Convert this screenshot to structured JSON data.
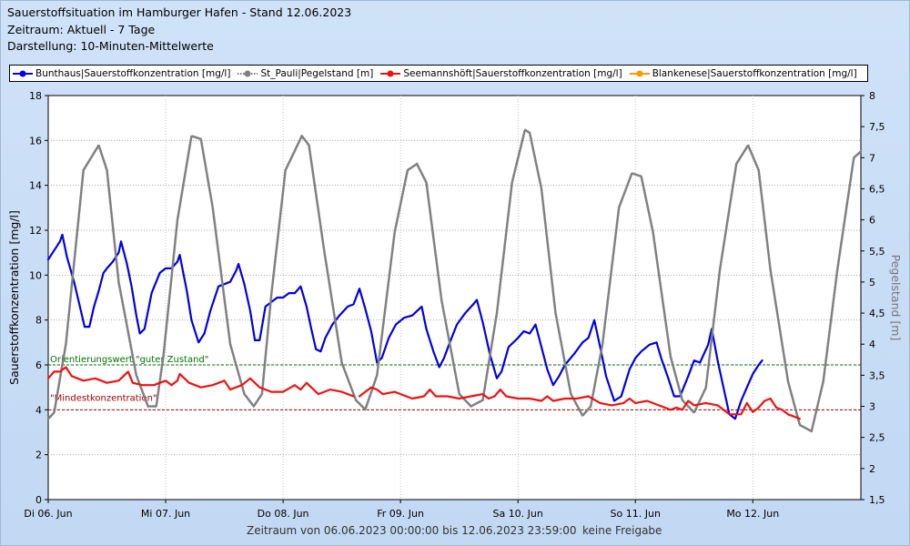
{
  "header": {
    "title": "Sauerstoffsituation im Hamburger Hafen - Stand 12.06.2023",
    "timespan": "Zeitraum: Aktuell - 7 Tage",
    "display": "Darstellung: 10-Minuten-Mittelwerte"
  },
  "footer": {
    "range": "Zeitraum von 06.06.2023 00:00:00 bis 12.06.2023 23:59:00",
    "status": "keine Freigabe"
  },
  "colors": {
    "bunthaus": "#0000e6",
    "stpauli": "#808080",
    "seemann": "#ee1111",
    "blankenese": "#ff9900",
    "ref_good": "#007000",
    "ref_min": "#a00000"
  },
  "chart_data": {
    "type": "line",
    "xlabel": "",
    "ylabel_left": "Sauerstoffkonzentration [mg/l]",
    "ylabel_right": "Pegelstand [m]",
    "ylim_left": [
      0,
      18
    ],
    "ylim_right": [
      1.5,
      8
    ],
    "yticks_left": [
      "0",
      "2",
      "4",
      "6",
      "8",
      "10",
      "12",
      "14",
      "16",
      "18"
    ],
    "yticks_right": [
      "1,5",
      "2",
      "2,5",
      "3",
      "3,5",
      "4",
      "4,5",
      "5",
      "5,5",
      "6",
      "6,5",
      "7",
      "7,5",
      "8"
    ],
    "x_range_days": [
      0,
      6.92
    ],
    "xticks": [
      {
        "day": 0,
        "label": "Di 06. Jun"
      },
      {
        "day": 1,
        "label": "Mi 07. Jun"
      },
      {
        "day": 2,
        "label": "Do 08. Jun"
      },
      {
        "day": 3,
        "label": "Fr 09. Jun"
      },
      {
        "day": 4,
        "label": "Sa 10. Jun"
      },
      {
        "day": 5,
        "label": "So 11. Jun"
      },
      {
        "day": 6,
        "label": "Mo 12. Jun"
      }
    ],
    "grid": true,
    "legend_position": "top",
    "reference_lines": [
      {
        "value": 6,
        "label": "Orientierungswert \"guter Zustand\"",
        "color": "#007000"
      },
      {
        "value": 4,
        "label": "\"Mindestkonzentration\"",
        "color": "#a00000"
      }
    ],
    "series": [
      {
        "name": "Bunthaus|Sauerstoffkonzentration [mg/l]",
        "axis": "left",
        "style": "solid",
        "color": "#0000e6",
        "points": [
          [
            0,
            10.7
          ],
          [
            0.05,
            11.1
          ],
          [
            0.1,
            11.5
          ],
          [
            0.12,
            11.8
          ],
          [
            0.16,
            10.8
          ],
          [
            0.22,
            9.7
          ],
          [
            0.27,
            8.6
          ],
          [
            0.31,
            7.7
          ],
          [
            0.35,
            7.7
          ],
          [
            0.39,
            8.6
          ],
          [
            0.43,
            9.3
          ],
          [
            0.47,
            10.1
          ],
          [
            0.5,
            10.3
          ],
          [
            0.55,
            10.6
          ],
          [
            0.6,
            11.0
          ],
          [
            0.62,
            11.5
          ],
          [
            0.67,
            10.5
          ],
          [
            0.71,
            9.5
          ],
          [
            0.75,
            8.2
          ],
          [
            0.78,
            7.4
          ],
          [
            0.82,
            7.6
          ],
          [
            0.88,
            9.2
          ],
          [
            0.95,
            10.1
          ],
          [
            1.0,
            10.3
          ],
          [
            1.05,
            10.3
          ],
          [
            1.1,
            10.6
          ],
          [
            1.12,
            10.9
          ],
          [
            1.18,
            9.3
          ],
          [
            1.22,
            8.0
          ],
          [
            1.28,
            7.0
          ],
          [
            1.33,
            7.4
          ],
          [
            1.38,
            8.4
          ],
          [
            1.45,
            9.5
          ],
          [
            1.5,
            9.6
          ],
          [
            1.55,
            9.7
          ],
          [
            1.6,
            10.2
          ],
          [
            1.62,
            10.5
          ],
          [
            1.67,
            9.6
          ],
          [
            1.72,
            8.4
          ],
          [
            1.76,
            7.1
          ],
          [
            1.8,
            7.1
          ],
          [
            1.85,
            8.6
          ],
          [
            1.95,
            9.0
          ],
          [
            2.0,
            9.0
          ],
          [
            2.05,
            9.2
          ],
          [
            2.1,
            9.2
          ],
          [
            2.15,
            9.5
          ],
          [
            2.2,
            8.6
          ],
          [
            2.24,
            7.6
          ],
          [
            2.28,
            6.7
          ],
          [
            2.32,
            6.6
          ],
          [
            2.36,
            7.2
          ],
          [
            2.42,
            7.8
          ],
          [
            2.48,
            8.2
          ],
          [
            2.55,
            8.6
          ],
          [
            2.6,
            8.7
          ],
          [
            2.65,
            9.4
          ],
          [
            2.7,
            8.5
          ],
          [
            2.75,
            7.5
          ],
          [
            2.8,
            6.1
          ],
          [
            2.84,
            6.3
          ],
          [
            2.9,
            7.2
          ],
          [
            2.96,
            7.8
          ],
          [
            3.03,
            8.1
          ],
          [
            3.1,
            8.2
          ],
          [
            3.18,
            8.6
          ],
          [
            3.22,
            7.6
          ],
          [
            3.28,
            6.6
          ],
          [
            3.33,
            5.9
          ],
          [
            3.37,
            6.3
          ],
          [
            3.42,
            7.0
          ],
          [
            3.48,
            7.8
          ],
          [
            3.55,
            8.3
          ],
          [
            3.62,
            8.7
          ],
          [
            3.65,
            8.9
          ],
          [
            3.7,
            7.9
          ],
          [
            3.76,
            6.5
          ],
          [
            3.82,
            5.4
          ],
          [
            3.86,
            5.7
          ],
          [
            3.92,
            6.8
          ],
          [
            4.0,
            7.2
          ],
          [
            4.05,
            7.5
          ],
          [
            4.1,
            7.4
          ],
          [
            4.15,
            7.8
          ],
          [
            4.2,
            6.8
          ],
          [
            4.25,
            5.8
          ],
          [
            4.3,
            5.1
          ],
          [
            4.35,
            5.5
          ],
          [
            4.4,
            6.0
          ],
          [
            4.48,
            6.5
          ],
          [
            4.55,
            7.0
          ],
          [
            4.6,
            7.2
          ],
          [
            4.65,
            8.0
          ],
          [
            4.7,
            6.8
          ],
          [
            4.75,
            5.5
          ],
          [
            4.82,
            4.4
          ],
          [
            4.88,
            4.6
          ],
          [
            4.95,
            5.8
          ],
          [
            5.0,
            6.3
          ],
          [
            5.05,
            6.6
          ],
          [
            5.12,
            6.9
          ],
          [
            5.18,
            7.0
          ],
          [
            5.22,
            6.3
          ],
          [
            5.28,
            5.4
          ],
          [
            5.33,
            4.6
          ],
          [
            5.38,
            4.6
          ],
          [
            5.45,
            5.5
          ],
          [
            5.5,
            6.2
          ],
          [
            5.55,
            6.1
          ],
          [
            5.62,
            6.9
          ],
          [
            5.65,
            7.6
          ],
          [
            5.7,
            6.2
          ],
          [
            5.75,
            5.0
          ],
          [
            5.8,
            3.8
          ],
          [
            5.85,
            3.6
          ],
          [
            5.9,
            4.4
          ],
          [
            5.95,
            5.0
          ],
          [
            6.0,
            5.6
          ],
          [
            6.05,
            6.0
          ],
          [
            6.08,
            6.2
          ]
        ]
      },
      {
        "name": "St_Pauli|Pegelstand [m]",
        "axis": "right",
        "style": "dotted",
        "color": "#808080",
        "points": [
          [
            0,
            2.8
          ],
          [
            0.05,
            2.9
          ],
          [
            0.15,
            4.0
          ],
          [
            0.3,
            6.8
          ],
          [
            0.43,
            7.2
          ],
          [
            0.5,
            6.8
          ],
          [
            0.6,
            5.0
          ],
          [
            0.75,
            3.5
          ],
          [
            0.85,
            3.0
          ],
          [
            0.92,
            3.0
          ],
          [
            0.98,
            3.8
          ],
          [
            1.1,
            6.0
          ],
          [
            1.22,
            7.35
          ],
          [
            1.3,
            7.3
          ],
          [
            1.4,
            6.2
          ],
          [
            1.55,
            4.0
          ],
          [
            1.67,
            3.2
          ],
          [
            1.75,
            3.0
          ],
          [
            1.82,
            3.2
          ],
          [
            1.9,
            4.8
          ],
          [
            2.02,
            6.8
          ],
          [
            2.16,
            7.35
          ],
          [
            2.22,
            7.2
          ],
          [
            2.35,
            5.5
          ],
          [
            2.5,
            3.7
          ],
          [
            2.62,
            3.1
          ],
          [
            2.7,
            2.95
          ],
          [
            2.8,
            3.5
          ],
          [
            2.95,
            5.8
          ],
          [
            3.06,
            6.8
          ],
          [
            3.14,
            6.9
          ],
          [
            3.22,
            6.6
          ],
          [
            3.35,
            4.7
          ],
          [
            3.5,
            3.2
          ],
          [
            3.6,
            3.0
          ],
          [
            3.7,
            3.1
          ],
          [
            3.82,
            4.5
          ],
          [
            3.95,
            6.6
          ],
          [
            4.06,
            7.45
          ],
          [
            4.1,
            7.4
          ],
          [
            4.2,
            6.5
          ],
          [
            4.32,
            4.5
          ],
          [
            4.45,
            3.2
          ],
          [
            4.55,
            2.85
          ],
          [
            4.62,
            3.0
          ],
          [
            4.72,
            4.0
          ],
          [
            4.86,
            6.2
          ],
          [
            4.97,
            6.75
          ],
          [
            5.05,
            6.7
          ],
          [
            5.15,
            5.8
          ],
          [
            5.3,
            3.8
          ],
          [
            5.4,
            3.1
          ],
          [
            5.5,
            2.9
          ],
          [
            5.6,
            3.3
          ],
          [
            5.72,
            5.2
          ],
          [
            5.86,
            6.9
          ],
          [
            5.96,
            7.2
          ],
          [
            6.05,
            6.8
          ],
          [
            6.15,
            5.2
          ],
          [
            6.3,
            3.4
          ],
          [
            6.4,
            2.7
          ],
          [
            6.5,
            2.6
          ],
          [
            6.6,
            3.4
          ],
          [
            6.72,
            5.2
          ],
          [
            6.86,
            7.0
          ],
          [
            6.92,
            7.1
          ]
        ]
      },
      {
        "name": "Seemannshöft|Sauerstoffkonzentration [mg/l]",
        "axis": "left",
        "style": "solid",
        "color": "#ee1111",
        "points": [
          [
            0,
            5.4
          ],
          [
            0.05,
            5.7
          ],
          [
            0.1,
            5.7
          ],
          [
            0.15,
            5.9
          ],
          [
            0.2,
            5.5
          ],
          [
            0.3,
            5.3
          ],
          [
            0.4,
            5.4
          ],
          [
            0.5,
            5.2
          ],
          [
            0.6,
            5.3
          ],
          [
            0.68,
            5.7
          ],
          [
            0.72,
            5.2
          ],
          [
            0.8,
            5.1
          ],
          [
            0.9,
            5.1
          ],
          [
            1.0,
            5.3
          ],
          [
            1.05,
            5.1
          ],
          [
            1.1,
            5.3
          ],
          [
            1.12,
            5.6
          ],
          [
            1.2,
            5.2
          ],
          [
            1.3,
            5.0
          ],
          [
            1.4,
            5.1
          ],
          [
            1.5,
            5.3
          ],
          [
            1.55,
            4.9
          ],
          [
            1.65,
            5.1
          ],
          [
            1.72,
            5.4
          ],
          [
            1.8,
            5.0
          ],
          [
            1.9,
            4.8
          ],
          [
            2.0,
            4.8
          ],
          [
            2.1,
            5.1
          ],
          [
            2.15,
            4.9
          ],
          [
            2.2,
            5.2
          ],
          [
            2.3,
            4.7
          ],
          [
            2.4,
            4.9
          ],
          [
            2.5,
            4.8
          ],
          [
            2.6,
            4.6
          ]
        ]
      },
      {
        "name": "Seemannshöft|Sauerstoffkonzentration [mg/l]",
        "axis": "left",
        "style": "solid",
        "color": "#ee1111",
        "points": [
          [
            2.65,
            4.6
          ],
          [
            2.7,
            4.8
          ],
          [
            2.75,
            5.0
          ],
          [
            2.8,
            4.9
          ],
          [
            2.85,
            4.7
          ],
          [
            2.95,
            4.8
          ],
          [
            3.05,
            4.6
          ],
          [
            3.1,
            4.5
          ],
          [
            3.2,
            4.6
          ],
          [
            3.25,
            4.9
          ],
          [
            3.3,
            4.6
          ],
          [
            3.4,
            4.6
          ],
          [
            3.5,
            4.5
          ],
          [
            3.6,
            4.6
          ],
          [
            3.7,
            4.7
          ],
          [
            3.75,
            4.5
          ],
          [
            3.8,
            4.6
          ],
          [
            3.85,
            4.9
          ],
          [
            3.9,
            4.6
          ],
          [
            4.0,
            4.5
          ],
          [
            4.1,
            4.5
          ],
          [
            4.2,
            4.4
          ],
          [
            4.25,
            4.6
          ],
          [
            4.3,
            4.4
          ],
          [
            4.4,
            4.5
          ],
          [
            4.5,
            4.5
          ],
          [
            4.6,
            4.6
          ],
          [
            4.7,
            4.3
          ],
          [
            4.8,
            4.2
          ],
          [
            4.9,
            4.3
          ],
          [
            4.95,
            4.5
          ],
          [
            5.0,
            4.3
          ],
          [
            5.1,
            4.4
          ],
          [
            5.2,
            4.2
          ],
          [
            5.3,
            4.0
          ],
          [
            5.35,
            4.1
          ],
          [
            5.4,
            4.0
          ],
          [
            5.45,
            4.4
          ],
          [
            5.5,
            4.2
          ],
          [
            5.6,
            4.3
          ],
          [
            5.7,
            4.2
          ],
          [
            5.75,
            4.0
          ],
          [
            5.8,
            3.8
          ],
          [
            5.9,
            3.8
          ],
          [
            5.95,
            4.3
          ],
          [
            6.0,
            3.9
          ],
          [
            6.05,
            4.1
          ],
          [
            6.1,
            4.4
          ],
          [
            6.15,
            4.5
          ],
          [
            6.2,
            4.1
          ],
          [
            6.25,
            4.0
          ],
          [
            6.3,
            3.8
          ],
          [
            6.35,
            3.7
          ],
          [
            6.4,
            3.6
          ]
        ]
      },
      {
        "name": "Blankenese|Sauerstoffkonzentration [mg/l]",
        "axis": "left",
        "style": "solid",
        "color": "#ff9900",
        "points": []
      }
    ]
  }
}
